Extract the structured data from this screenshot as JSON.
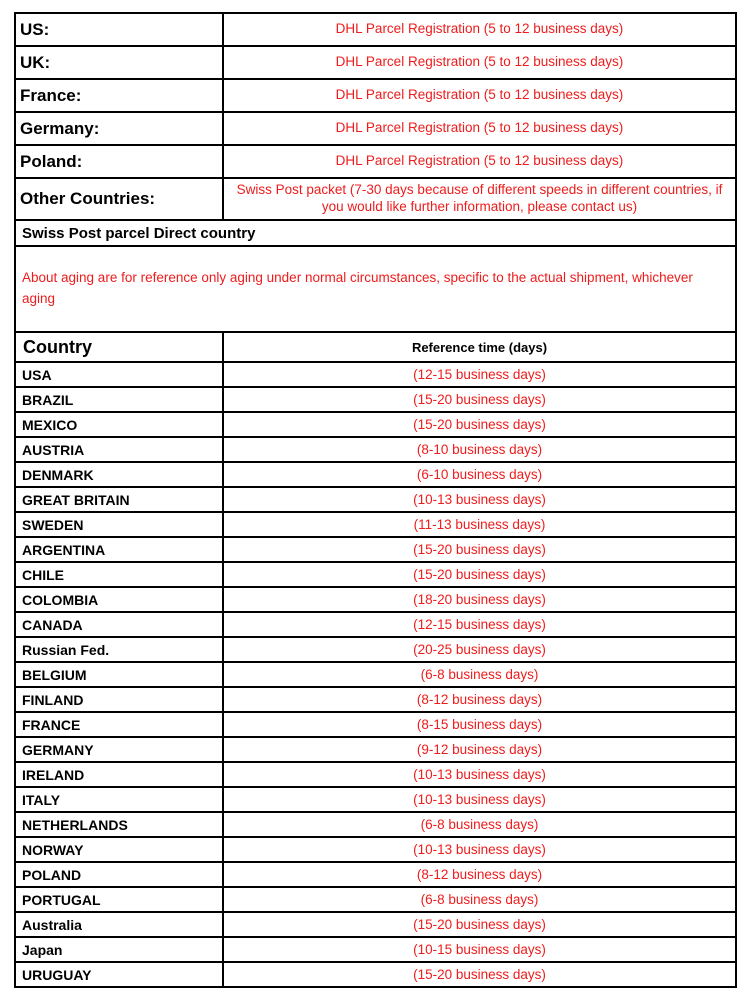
{
  "colors": {
    "accent_red": "#ee1c1c",
    "border": "#000000",
    "background": "#ffffff"
  },
  "shipping_table": {
    "dhl_rows": [
      {
        "label": "US:",
        "value": "DHL Parcel Registration (5 to 12 business days)"
      },
      {
        "label": "UK:",
        "value": "DHL Parcel Registration (5 to 12 business days)"
      },
      {
        "label": "France:",
        "value": "DHL Parcel Registration (5 to 12 business days)"
      },
      {
        "label": "Germany:",
        "value": "DHL Parcel Registration (5 to 12 business days)"
      },
      {
        "label": "Poland:",
        "value": "DHL Parcel Registration (5 to 12 business days)"
      },
      {
        "label": "Other Countries:",
        "value": "Swiss Post packet (7-30 days because of different speeds in different countries, if you would like further information, please contact us)"
      }
    ],
    "section_header": "Swiss Post parcel Direct country",
    "note": "About aging are for reference only aging under normal circumstances, specific to the actual shipment, whichever aging",
    "country_table": {
      "headers": {
        "country": "Country",
        "time": "Reference time (days)"
      },
      "rows": [
        {
          "country": "USA",
          "time": "(12-15 business days)"
        },
        {
          "country": "BRAZIL",
          "time": "(15-20 business days)"
        },
        {
          "country": "MEXICO",
          "time": "(15-20 business days)"
        },
        {
          "country": "AUSTRIA",
          "time": "(8-10 business days)"
        },
        {
          "country": "DENMARK",
          "time": "(6-10 business days)"
        },
        {
          "country": "GREAT BRITAIN",
          "time": "(10-13 business days)"
        },
        {
          "country": "SWEDEN",
          "time": "(11-13 business days)"
        },
        {
          "country": "ARGENTINA",
          "time": "(15-20 business days)"
        },
        {
          "country": "CHILE",
          "time": "(15-20 business days)"
        },
        {
          "country": "COLOMBIA",
          "time": "(18-20 business days)"
        },
        {
          "country": "CANADA",
          "time": "(12-15 business days)"
        },
        {
          "country": "Russian Fed.",
          "time": "(20-25 business days)"
        },
        {
          "country": "BELGIUM",
          "time": "(6-8 business days)"
        },
        {
          "country": "FINLAND",
          "time": "(8-12 business days)"
        },
        {
          "country": "FRANCE",
          "time": "(8-15 business days)"
        },
        {
          "country": "GERMANY",
          "time": "(9-12 business days)"
        },
        {
          "country": "IRELAND",
          "time": "(10-13 business days)"
        },
        {
          "country": "ITALY",
          "time": "(10-13 business days)"
        },
        {
          "country": "NETHERLANDS",
          "time": "(6-8 business days)"
        },
        {
          "country": "NORWAY",
          "time": "(10-13 business days)"
        },
        {
          "country": "POLAND",
          "time": "(8-12 business days)"
        },
        {
          "country": "PORTUGAL",
          "time": "(6-8 business days)"
        },
        {
          "country": "Australia",
          "time": "(15-20 business days)"
        },
        {
          "country": "Japan",
          "time": "(10-15 business days)"
        },
        {
          "country": "URUGUAY",
          "time": "(15-20 business days)"
        }
      ]
    }
  }
}
